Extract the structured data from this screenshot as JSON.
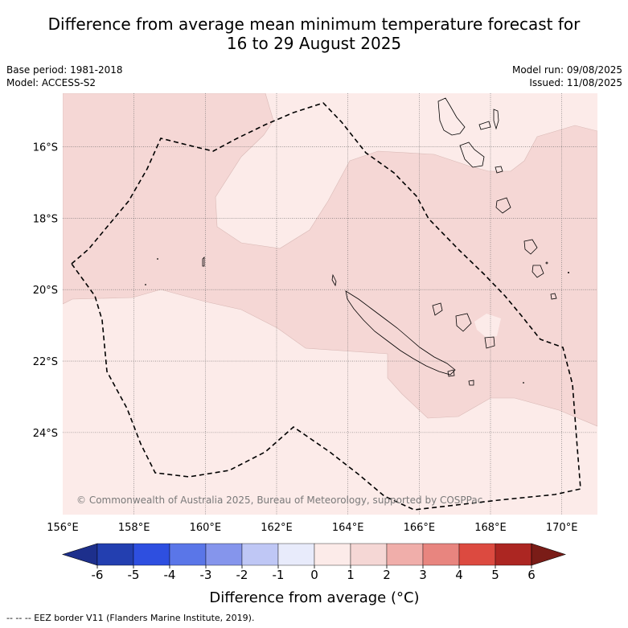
{
  "title": {
    "line1": "Difference from average mean minimum temperature forecast for",
    "line2": "16 to 29 August 2025"
  },
  "info_left": {
    "base_period": "Base period: 1981-2018",
    "model": "Model: ACCESS-S2"
  },
  "info_right": {
    "model_run": "Model run: 09/08/2025",
    "issued": "Issued: 11/08/2025"
  },
  "map": {
    "lon_range": [
      156.0,
      171.0
    ],
    "lat_range": [
      -26.3,
      -14.5
    ],
    "lon_ticks": [
      "156°E",
      "158°E",
      "160°E",
      "162°E",
      "164°E",
      "166°E",
      "168°E",
      "170°E"
    ],
    "lat_ticks": [
      "16°S",
      "18°S",
      "20°S",
      "22°S",
      "24°S"
    ],
    "gridlines": true,
    "copyright": "© Commonwealth of Australia 2025, Bureau of Meteorology, supported by COSPPac",
    "categories": [
      {
        "range": "0 to 1",
        "color": "#fcebe9"
      },
      {
        "range": "1 to 2",
        "color": "#f5d7d5"
      }
    ]
  },
  "colorbar": {
    "ticks": [
      "-6",
      "-5",
      "-4",
      "-3",
      "-2",
      "-1",
      "0",
      "1",
      "2",
      "3",
      "4",
      "5",
      "6"
    ],
    "colors": [
      "#233fb0",
      "#2e4fe0",
      "#5a76e8",
      "#8595ec",
      "#bfc7f5",
      "#e8ebfb",
      "#fcebe9",
      "#f5d7d5",
      "#f0aeaa",
      "#e8857f",
      "#dc4a40",
      "#ac2622"
    ],
    "low_extend_color": "#1d2f8c",
    "high_extend_color": "#7a1c17",
    "label": "Difference from average (°C)"
  },
  "footnote": "--  --  -- EEZ border V11 (Flanders Marine Institute, 2019)."
}
